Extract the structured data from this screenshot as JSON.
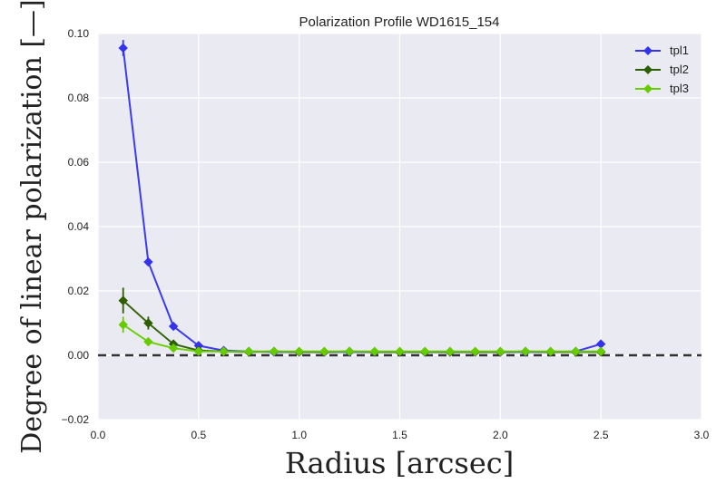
{
  "chart_data": {
    "type": "line",
    "title": "Polarization Profile WD1615_154",
    "xlabel": "Radius [arcsec]",
    "ylabel": "Degree of linear polarization [—]",
    "xlim": [
      0.0,
      3.0
    ],
    "ylim": [
      -0.02,
      0.1
    ],
    "xticks": [
      "0.0",
      "0.5",
      "1.0",
      "1.5",
      "2.0",
      "2.5",
      "3.0"
    ],
    "yticks": [
      "−0.02",
      "0.00",
      "0.02",
      "0.04",
      "0.06",
      "0.08",
      "0.10"
    ],
    "grid": true,
    "legend_position": "top-right",
    "reference_line": {
      "y": 0.0,
      "style": "dashed",
      "color": "#333333"
    },
    "x": [
      0.125,
      0.25,
      0.375,
      0.5,
      0.625,
      0.75,
      0.875,
      1.0,
      1.125,
      1.25,
      1.375,
      1.5,
      1.625,
      1.75,
      1.875,
      2.0,
      2.125,
      2.25,
      2.375,
      2.5
    ],
    "series": [
      {
        "name": "tpl1",
        "color": "#3333ee",
        "values": [
          0.0955,
          0.029,
          0.009,
          0.003,
          0.0015,
          0.0012,
          0.001,
          0.001,
          0.001,
          0.001,
          0.001,
          0.001,
          0.001,
          0.001,
          0.001,
          0.001,
          0.001,
          0.001,
          0.0012,
          0.0035
        ],
        "errors": [
          0.0025,
          0.001,
          0.001,
          0.0006,
          0.0004,
          0.0004,
          0.0004,
          0.0004,
          0.0004,
          0.0004,
          0.0004,
          0.0004,
          0.0004,
          0.0004,
          0.0004,
          0.0004,
          0.0004,
          0.0004,
          0.0004,
          0.0006
        ]
      },
      {
        "name": "tpl2",
        "color": "#2d5e00",
        "values": [
          0.017,
          0.01,
          0.0035,
          0.0015,
          0.0012,
          0.001,
          0.0012,
          0.001,
          0.001,
          0.0012,
          0.001,
          0.001,
          0.001,
          0.001,
          0.001,
          0.001,
          0.0012,
          0.001,
          0.001,
          0.001
        ],
        "errors": [
          0.004,
          0.002,
          0.001,
          0.0008,
          0.0008,
          0.0008,
          0.0008,
          0.0008,
          0.0008,
          0.0008,
          0.0008,
          0.0008,
          0.0008,
          0.0008,
          0.0008,
          0.0008,
          0.0008,
          0.0008,
          0.0008,
          0.0008
        ]
      },
      {
        "name": "tpl3",
        "color": "#66cc00",
        "values": [
          0.0095,
          0.0042,
          0.0022,
          0.0012,
          0.0012,
          0.0012,
          0.0012,
          0.0012,
          0.0012,
          0.0012,
          0.0012,
          0.0012,
          0.0012,
          0.0012,
          0.0012,
          0.0012,
          0.0012,
          0.0012,
          0.0012,
          0.0012
        ],
        "errors": [
          0.0025,
          0.001,
          0.0008,
          0.0006,
          0.0006,
          0.0006,
          0.0006,
          0.0006,
          0.0006,
          0.0006,
          0.0006,
          0.0006,
          0.0006,
          0.0006,
          0.0006,
          0.0006,
          0.0006,
          0.0006,
          0.0006,
          0.0006
        ]
      }
    ]
  }
}
